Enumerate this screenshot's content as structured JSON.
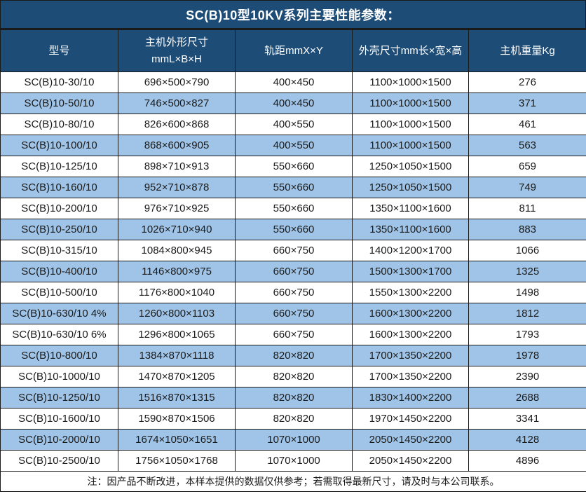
{
  "title": "SC(B)10型10KV系列主要性能参数：",
  "colors": {
    "header_bg": "#1d4c77",
    "alt_row_bg": "#9fc4e7",
    "border": "#1a1a1a",
    "text": "#1a1a1a",
    "header_text": "#ffffff"
  },
  "table": {
    "headers": [
      {
        "line1": "型号"
      },
      {
        "line1": "主机外形尺寸",
        "line2": "mmL×B×H"
      },
      {
        "line1": "轨距mmX×Y"
      },
      {
        "line1": "外壳尺寸mm长×宽×高"
      },
      {
        "line1": "主机重量Kg"
      }
    ],
    "rows": [
      [
        "SC(B)10-30/10",
        "696×500×790",
        "400×450",
        "1100×1000×1500",
        "276"
      ],
      [
        "SC(B)10-50/10",
        "746×500×827",
        "400×450",
        "1100×1000×1500",
        "371"
      ],
      [
        "SC(B)10-80/10",
        "826×600×868",
        "400×550",
        "1100×1000×1500",
        "461"
      ],
      [
        "SC(B)10-100/10",
        "868×600×905",
        "400×550",
        "1100×1000×1500",
        "563"
      ],
      [
        "SC(B)10-125/10",
        "898×710×913",
        "550×660",
        "1250×1050×1500",
        "659"
      ],
      [
        "SC(B)10-160/10",
        "952×710×878",
        "550×660",
        "1250×1050×1500",
        "749"
      ],
      [
        "SC(B)10-200/10",
        "976×710×925",
        "550×660",
        "1350×1100×1600",
        "811"
      ],
      [
        "SC(B)10-250/10",
        "1026×710×940",
        "550×660",
        "1350×1100×1600",
        "883"
      ],
      [
        "SC(B)10-315/10",
        "1084×800×945",
        "660×750",
        "1400×1200×1700",
        "1066"
      ],
      [
        "SC(B)10-400/10",
        "1146×800×975",
        "660×750",
        "1500×1300×1700",
        "1325"
      ],
      [
        "SC(B)10-500/10",
        "1176×800×1040",
        "660×750",
        "1550×1300×2200",
        "1498"
      ],
      [
        "SC(B)10-630/10 4%",
        "1260×800×1103",
        "660×750",
        "1600×1300×2200",
        "1812"
      ],
      [
        "SC(B)10-630/10 6%",
        "1296×800×1065",
        "660×750",
        "1600×1300×2200",
        "1793"
      ],
      [
        "SC(B)10-800/10",
        "1384×870×1118",
        "820×820",
        "1700×1350×2200",
        "1978"
      ],
      [
        "SC(B)10-1000/10",
        "1470×870×1205",
        "820×820",
        "1700×1350×2200",
        "2390"
      ],
      [
        "SC(B)10-1250/10",
        "1516×870×1315",
        "820×820",
        "1830×1400×2200",
        "2688"
      ],
      [
        "SC(B)10-1600/10",
        "1590×870×1506",
        "820×820",
        "1970×1450×2200",
        "3341"
      ],
      [
        "SC(B)10-2000/10",
        "1674×1050×1651",
        "1070×1000",
        "2050×1450×2200",
        "4128"
      ],
      [
        "SC(B)10-2500/10",
        "1756×1050×1768",
        "1070×1000",
        "2050×1450×2200",
        "4896"
      ]
    ],
    "footer_note": "注：因产品不断改进，本样本提供的数据仅供参考；若需取得最新尺寸，请及时与本公司联系。"
  }
}
